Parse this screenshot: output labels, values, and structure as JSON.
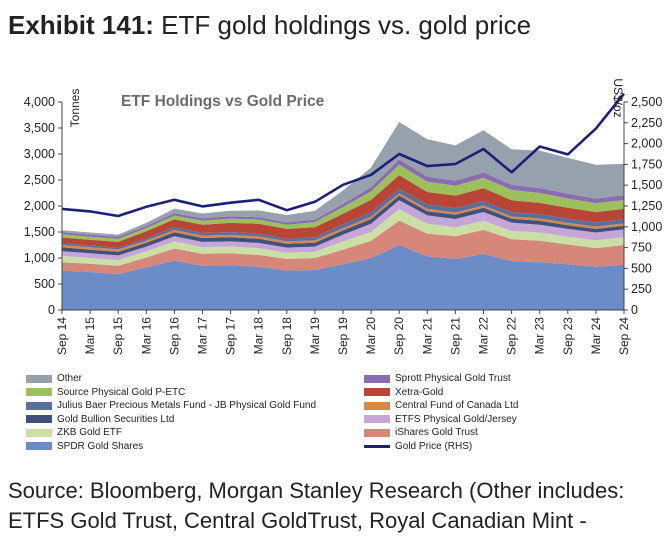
{
  "exhibit": {
    "label": "Exhibit 141:",
    "title": "ETF gold holdings vs. gold price"
  },
  "source": {
    "line1": "Source: Bloomberg, Morgan Stanley Research (Other includes:",
    "line2": "ETFS Gold Trust, Central GoldTrust, Royal Canadian Mint -"
  },
  "chart_data": {
    "type": "area",
    "title": "ETF Holdings vs Gold Price",
    "ylabel_left": "Tonnes",
    "ylabel_right": "US$/oz",
    "ylim_left": [
      0,
      4000
    ],
    "ylim_right": [
      0,
      2500
    ],
    "yticks_left": [
      "0",
      "500",
      "1,000",
      "1,500",
      "2,000",
      "2,500",
      "3,000",
      "3,500",
      "4,000"
    ],
    "yticks_right": [
      "0",
      "250",
      "500",
      "750",
      "1,000",
      "1,250",
      "1,500",
      "1,750",
      "2,000",
      "2,250",
      "2,500"
    ],
    "x": [
      "Sep 14",
      "Mar 15",
      "Sep 15",
      "Mar 16",
      "Sep 16",
      "Mar 17",
      "Sep 17",
      "Mar 18",
      "Sep 18",
      "Mar 19",
      "Sep 19",
      "Mar 20",
      "Sep 20",
      "Mar 21",
      "Sep 21",
      "Mar 22",
      "Sep 22",
      "Mar 23",
      "Sep 23",
      "Mar 24",
      "Sep 24"
    ],
    "series": [
      {
        "name": "SPDR Gold Shares",
        "color": "#6b8cc7",
        "values": [
          760,
          730,
          690,
          820,
          950,
          850,
          860,
          830,
          760,
          770,
          880,
          1000,
          1250,
          1030,
          980,
          1080,
          940,
          920,
          880,
          830,
          870
        ]
      },
      {
        "name": "iShares Gold Trust",
        "color": "#d7877a",
        "values": [
          160,
          160,
          160,
          190,
          230,
          230,
          230,
          230,
          220,
          230,
          280,
          330,
          470,
          440,
          440,
          460,
          420,
          410,
          380,
          360,
          380
        ]
      },
      {
        "name": "ZKB Gold ETF",
        "color": "#c9dfa4",
        "values": [
          120,
          110,
          110,
          120,
          140,
          130,
          130,
          130,
          120,
          120,
          160,
          170,
          220,
          190,
          170,
          175,
          160,
          160,
          150,
          150,
          150
        ]
      },
      {
        "name": "ETFS Physical Gold/Jersey",
        "color": "#c6a6d6",
        "values": [
          90,
          90,
          90,
          90,
          100,
          100,
          100,
          100,
          100,
          100,
          130,
          160,
          170,
          160,
          160,
          170,
          160,
          150,
          150,
          150,
          150
        ]
      },
      {
        "name": "Gold Bullion Securities Ltd",
        "color": "#41517e",
        "values": [
          75,
          70,
          70,
          70,
          75,
          75,
          80,
          80,
          75,
          75,
          80,
          90,
          90,
          80,
          80,
          80,
          75,
          75,
          70,
          70,
          70
        ]
      },
      {
        "name": "Central Fund of Canada Ltd",
        "color": "#d5884a",
        "values": [
          45,
          45,
          45,
          45,
          45,
          45,
          45,
          45,
          45,
          45,
          45,
          45,
          45,
          45,
          45,
          45,
          45,
          45,
          45,
          45,
          45
        ]
      },
      {
        "name": "Julius Baer Precious Metals Fund - JB Physical Gold Fund",
        "color": "#5a6f9e",
        "values": [
          35,
          35,
          35,
          40,
          55,
          50,
          55,
          55,
          50,
          60,
          75,
          85,
          90,
          85,
          85,
          85,
          80,
          80,
          80,
          80,
          80
        ]
      },
      {
        "name": "Xetra-Gold",
        "color": "#b84535",
        "values": [
          110,
          110,
          110,
          140,
          150,
          160,
          175,
          190,
          190,
          190,
          200,
          240,
          260,
          240,
          240,
          250,
          230,
          220,
          210,
          200,
          200
        ]
      },
      {
        "name": "Source Physical Gold P-ETC",
        "color": "#9bc05c",
        "values": [
          60,
          60,
          60,
          60,
          70,
          80,
          80,
          80,
          80,
          100,
          130,
          160,
          200,
          200,
          190,
          200,
          200,
          190,
          180,
          170,
          170
        ]
      },
      {
        "name": "Sprott Physical Gold Trust",
        "color": "#8a6cb0",
        "values": [
          40,
          40,
          40,
          40,
          45,
          45,
          45,
          45,
          45,
          50,
          60,
          80,
          100,
          95,
          95,
          100,
          100,
          95,
          90,
          90,
          95
        ]
      },
      {
        "name": "Other",
        "color": "#97a0ad",
        "values": [
          40,
          40,
          40,
          60,
          90,
          90,
          110,
          130,
          140,
          170,
          260,
          380,
          720,
          720,
          680,
          810,
          680,
          720,
          690,
          650,
          600
        ]
      }
    ],
    "line_series": {
      "name": "Gold Price (RHS)",
      "axis": "right",
      "color": "#1b2079",
      "values": [
        1215,
        1185,
        1130,
        1240,
        1325,
        1245,
        1290,
        1325,
        1200,
        1300,
        1505,
        1625,
        1875,
        1730,
        1755,
        1935,
        1655,
        1965,
        1870,
        2180,
        2600
      ]
    },
    "legend": [
      [
        "Other",
        "Sprott Physical Gold Trust"
      ],
      [
        "Source Physical Gold P-ETC",
        "Xetra-Gold"
      ],
      [
        "Julius Baer Precious Metals Fund - JB Physical Gold Fund",
        "Central Fund of Canada Ltd"
      ],
      [
        "Gold Bullion Securities Ltd",
        "ETFS Physical Gold/Jersey"
      ],
      [
        "ZKB Gold ETF",
        "iShares Gold Trust"
      ],
      [
        "SPDR Gold Shares",
        "Gold Price (RHS)"
      ]
    ],
    "legend_placement": "bottom",
    "grid": false
  }
}
